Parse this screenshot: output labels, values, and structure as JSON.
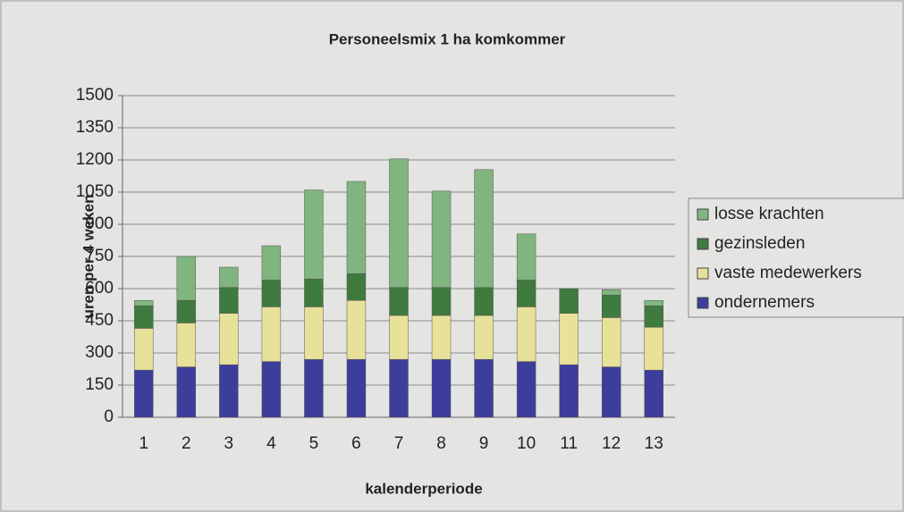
{
  "chart_data": {
    "type": "stacked_bar",
    "title": "Personeelsmix 1 ha komkommer",
    "x_label": "kalenderperiode",
    "y_label": "uren per 4 weken",
    "categories": [
      "1",
      "2",
      "3",
      "4",
      "5",
      "6",
      "7",
      "8",
      "9",
      "10",
      "11",
      "12",
      "13"
    ],
    "series": [
      {
        "name": "ondernemers",
        "color": "#3d3d9c",
        "values": [
          220,
          235,
          245,
          260,
          270,
          270,
          270,
          270,
          270,
          260,
          245,
          235,
          220
        ]
      },
      {
        "name": "vaste medewerkers",
        "color": "#e8e19a",
        "values": [
          195,
          205,
          240,
          255,
          245,
          275,
          205,
          205,
          205,
          255,
          240,
          230,
          200
        ]
      },
      {
        "name": "gezinsleden",
        "color": "#3f7a3f",
        "values": [
          105,
          105,
          120,
          125,
          130,
          125,
          130,
          130,
          130,
          125,
          115,
          105,
          100
        ]
      },
      {
        "name": "losse krachten",
        "color": "#80b580",
        "values": [
          25,
          205,
          95,
          160,
          415,
          430,
          600,
          450,
          550,
          215,
          0,
          25,
          25
        ]
      }
    ],
    "ylim": [
      0,
      1500
    ],
    "yticks": [
      0,
      150,
      300,
      450,
      600,
      750,
      900,
      1050,
      1200,
      1350,
      1500
    ],
    "grid": true
  }
}
